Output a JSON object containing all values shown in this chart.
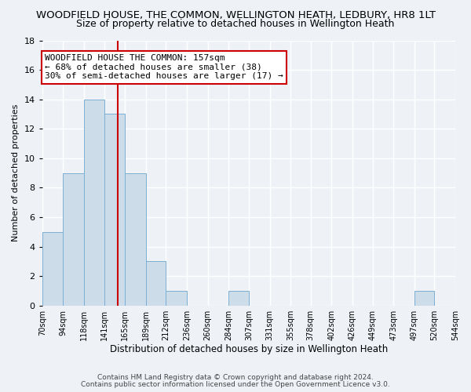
{
  "title": "WOODFIELD HOUSE, THE COMMON, WELLINGTON HEATH, LEDBURY, HR8 1LT",
  "subtitle": "Size of property relative to detached houses in Wellington Heath",
  "xlabel": "Distribution of detached houses by size in Wellington Heath",
  "ylabel": "Number of detached properties",
  "bin_edges": [
    70,
    94,
    118,
    141,
    165,
    189,
    212,
    236,
    260,
    284,
    307,
    331,
    355,
    378,
    402,
    426,
    449,
    473,
    497,
    520,
    544
  ],
  "bin_counts": [
    5,
    9,
    14,
    13,
    9,
    3,
    1,
    0,
    0,
    1,
    0,
    0,
    0,
    0,
    0,
    0,
    0,
    0,
    1,
    0
  ],
  "bar_facecolor": "#ccdce8",
  "bar_edgecolor": "#7bafd4",
  "property_value": 157,
  "redline_color": "#cc0000",
  "annotation_text": "WOODFIELD HOUSE THE COMMON: 157sqm\n← 68% of detached houses are smaller (38)\n30% of semi-detached houses are larger (17) →",
  "annotation_boxcolor": "#ffffff",
  "annotation_boxedge": "#cc0000",
  "ylim": [
    0,
    18
  ],
  "yticks": [
    0,
    2,
    4,
    6,
    8,
    10,
    12,
    14,
    16,
    18
  ],
  "tick_labels": [
    "70sqm",
    "94sqm",
    "118sqm",
    "141sqm",
    "165sqm",
    "189sqm",
    "212sqm",
    "236sqm",
    "260sqm",
    "284sqm",
    "307sqm",
    "331sqm",
    "355sqm",
    "378sqm",
    "402sqm",
    "426sqm",
    "449sqm",
    "473sqm",
    "497sqm",
    "520sqm",
    "544sqm"
  ],
  "footer_line1": "Contains HM Land Registry data © Crown copyright and database right 2024.",
  "footer_line2": "Contains public sector information licensed under the Open Government Licence v3.0.",
  "background_color": "#eef2f7",
  "grid_color": "#ffffff",
  "title_fontsize": 9.5,
  "subtitle_fontsize": 9,
  "xlabel_fontsize": 8.5,
  "ylabel_fontsize": 8,
  "footer_fontsize": 6.5,
  "annotation_fontsize": 8
}
